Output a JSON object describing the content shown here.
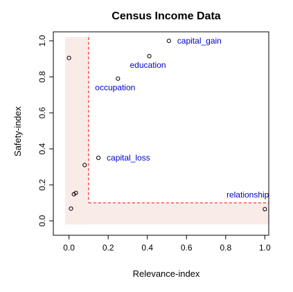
{
  "chart_data": {
    "type": "scatter",
    "title": "Census Income Data",
    "xlabel": "Relevance-index",
    "ylabel": "Safety-index",
    "xlim": [
      -0.08,
      1.02
    ],
    "ylim": [
      -0.08,
      1.05
    ],
    "xticks": [
      0.0,
      0.2,
      0.4,
      0.6,
      0.8,
      1.0
    ],
    "xtick_labels": [
      "0.0",
      "0.2",
      "0.4",
      "0.6",
      "0.8",
      "1.0"
    ],
    "yticks": [
      0.0,
      0.2,
      0.4,
      0.6,
      0.8,
      1.0
    ],
    "ytick_labels": [
      "0.0",
      "0.2",
      "0.4",
      "0.6",
      "0.8",
      "1.0"
    ],
    "grid": false,
    "points": [
      {
        "x": 0.51,
        "y": 1.0,
        "label": "capital_gain"
      },
      {
        "x": 0.41,
        "y": 0.915,
        "label": "education"
      },
      {
        "x": 0.25,
        "y": 0.79,
        "label": "occupation"
      },
      {
        "x": 0.15,
        "y": 0.35,
        "label": "capital_loss"
      },
      {
        "x": 1.0,
        "y": 0.065,
        "label": "relationship"
      },
      {
        "x": 0.0,
        "y": 0.905,
        "label": ""
      },
      {
        "x": 0.08,
        "y": 0.31,
        "label": ""
      },
      {
        "x": 0.035,
        "y": 0.155,
        "label": ""
      },
      {
        "x": 0.025,
        "y": 0.148,
        "label": ""
      },
      {
        "x": 0.01,
        "y": 0.068,
        "label": ""
      }
    ],
    "shaded_region": {
      "vertical_band": {
        "x": [
          -0.02,
          0.1
        ],
        "y": [
          -0.02,
          1.02
        ]
      },
      "horizontal_band": {
        "x": [
          -0.02,
          1.02
        ],
        "y": [
          -0.02,
          0.1
        ]
      }
    },
    "threshold_lines": {
      "x": 0.1,
      "y": 0.1
    },
    "colors": {
      "label": "#0000cc",
      "shade": "#f9ebe8",
      "threshold": "#ff0000",
      "axis": "#000000"
    }
  }
}
